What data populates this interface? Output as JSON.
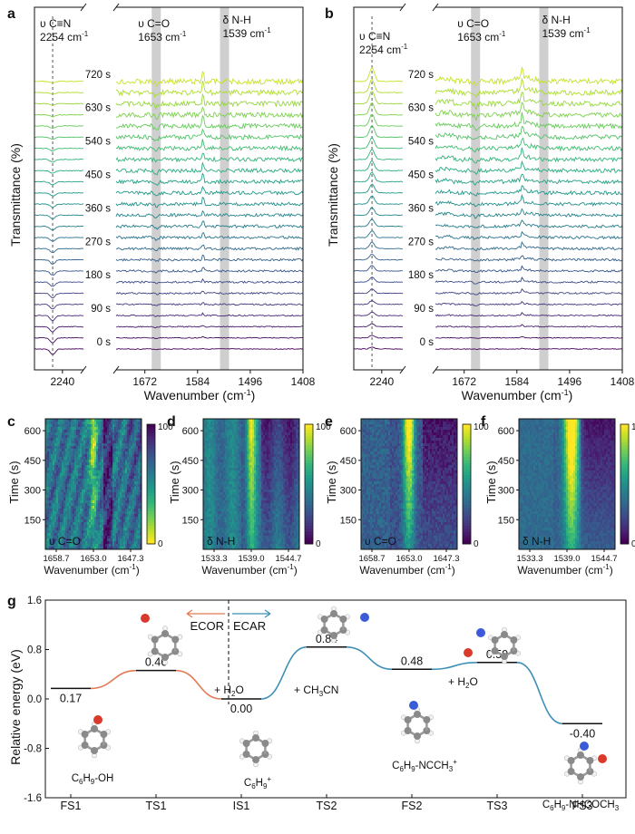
{
  "chart_data": [
    {
      "panel": "a",
      "type": "line",
      "xlabel": "Wavenumber (cm",
      "xlabel_sup": "-1",
      "xlabel_end": ")",
      "ylabel": "Transmittance (%)",
      "x_ticks_left": [
        "2240"
      ],
      "x_ticks_right": [
        "1672",
        "1584",
        "1496",
        "1408"
      ],
      "x_range_left": [
        2280,
        2210
      ],
      "x_range_right": [
        1720,
        1408
      ],
      "series_count": 25,
      "time_labels": [
        "720 s",
        "630 s",
        "540 s",
        "450 s",
        "360 s",
        "270 s",
        "180 s",
        "90 s",
        "0 s"
      ],
      "annotations": [
        {
          "label": "υ C≡N",
          "value": "2254 cm",
          "sup": "-1",
          "x": 2254,
          "style": "dashed"
        },
        {
          "label": "υ C=O",
          "value": "1653 cm",
          "sup": "-1",
          "x": 1653,
          "style": "band"
        },
        {
          "label": "δ N-H",
          "value": "1539 cm",
          "sup": "-1",
          "x": 1539,
          "style": "band"
        }
      ]
    },
    {
      "panel": "b",
      "type": "line",
      "xlabel": "Wavenumber (cm",
      "xlabel_sup": "-1",
      "xlabel_end": ")",
      "ylabel": "Transmittance (%)",
      "x_ticks_left": [
        "2240"
      ],
      "x_ticks_right": [
        "1672",
        "1584",
        "1496",
        "1408"
      ],
      "x_range_left": [
        2280,
        2210
      ],
      "x_range_right": [
        1720,
        1408
      ],
      "series_count": 25,
      "time_labels": [
        "720 s",
        "630 s",
        "540 s",
        "450 s",
        "360 s",
        "270 s",
        "180 s",
        "90 s",
        "0 s"
      ],
      "annotations": [
        {
          "label": "υ C≡N",
          "value": "2254 cm",
          "sup": "-1",
          "x": 2254,
          "style": "dashed"
        },
        {
          "label": "υ C=O",
          "value": "1653 cm",
          "sup": "-1",
          "x": 1653,
          "style": "band"
        },
        {
          "label": "δ N-H",
          "value": "1539 cm",
          "sup": "-1",
          "x": 1539,
          "style": "band"
        }
      ]
    },
    {
      "panel": "c",
      "type": "heatmap",
      "label": "υ C=O",
      "ylabel": "Time (s)",
      "yticks": [
        150,
        300,
        450,
        600
      ],
      "ylim": [
        0,
        660
      ],
      "xlabel": "Wavenumber (cm",
      "xlabel_sup": "-1",
      "xlabel_end": ")",
      "xticks": [
        "1658.7",
        "1653.0",
        "1647.3"
      ],
      "colorbar": {
        "max": "100",
        "min": "0"
      },
      "peak_x": 1653.0
    },
    {
      "panel": "d",
      "type": "heatmap",
      "label": "δ N-H",
      "ylabel": "Time (s)",
      "yticks": [
        150,
        300,
        450,
        600
      ],
      "ylim": [
        0,
        660
      ],
      "xlabel": "Wavenumber (cm",
      "xlabel_sup": "-1",
      "xlabel_end": ")",
      "xticks": [
        "1533.3",
        "1539.0",
        "1544.7"
      ],
      "colorbar": {
        "max": "100",
        "min": "0"
      },
      "peak_x": 1539.0
    },
    {
      "panel": "e",
      "type": "heatmap",
      "label": "υ C=O",
      "ylabel": "Time (s)",
      "yticks": [
        150,
        300,
        450,
        600
      ],
      "ylim": [
        0,
        660
      ],
      "xlabel": "Wavenumber (cm",
      "xlabel_sup": "-1",
      "xlabel_end": ")",
      "xticks": [
        "1658.7",
        "1653.0",
        "1647.3"
      ],
      "colorbar": {
        "max": "100",
        "min": "0"
      },
      "peak_x": 1653.0
    },
    {
      "panel": "f",
      "type": "heatmap",
      "label": "δ N-H",
      "ylabel": "Time (s)",
      "yticks": [
        150,
        300,
        450,
        600
      ],
      "ylim": [
        0,
        660
      ],
      "xlabel": "Wavenumber (cm",
      "xlabel_sup": "-1",
      "xlabel_end": ")",
      "xticks": [
        "1533.3",
        "1539.0",
        "1544.7"
      ],
      "colorbar": {
        "max": "100",
        "min": "0"
      },
      "peak_x": 1539.0
    },
    {
      "panel": "g",
      "type": "line",
      "ylabel": "Relative energy (eV)",
      "ylim": [
        -1.6,
        1.6
      ],
      "yticks": [
        "-1.6",
        "-0.8",
        "0.0",
        "0.8",
        "1.6"
      ],
      "categories": [
        "FS1",
        "TS1",
        "IS1",
        "TS2",
        "FS2",
        "TS3",
        "FS3"
      ],
      "values": [
        0.17,
        0.46,
        0.0,
        0.84,
        0.48,
        0.59,
        -0.4
      ],
      "value_labels": [
        "0.17",
        "0.46",
        "0.00",
        "0.84",
        "0.48",
        "0.59",
        "-0.40"
      ],
      "species": [
        {
          "main": "C",
          "sub1": "6",
          "mid": "H",
          "sub2": "9",
          "tail": "-OH",
          "sup": ""
        },
        {
          "main": "C",
          "sub1": "6",
          "mid": "H",
          "sub2": "9",
          "tail": "",
          "sup": "+"
        },
        {
          "main": "C",
          "sub1": "6",
          "mid": "H",
          "sub2": "9",
          "tail": "-NCCH",
          "sub3": "3",
          "sup": "+"
        },
        {
          "main": "C",
          "sub1": "6",
          "mid": "H",
          "sub2": "9",
          "tail": "-NHCOCH",
          "sub3": "3",
          "sup": ""
        }
      ],
      "step_labels": [
        "+ H",
        "2",
        "O",
        "+ CH",
        "3",
        "CN",
        "+ H",
        "2",
        "O"
      ],
      "direction_labels": {
        "left": "ECOR",
        "right": "ECAR"
      },
      "colors": {
        "ecor": "#e07b54",
        "ecar": "#3e8fb5",
        "accent_red": "#d93a2b",
        "accent_blue": "#3b5bd9"
      }
    }
  ],
  "colors": {
    "viridis_dark": "#440154",
    "viridis_mid": "#21918c",
    "viridis_light": "#b5de2b",
    "band_gray": "#cfcfcf"
  }
}
